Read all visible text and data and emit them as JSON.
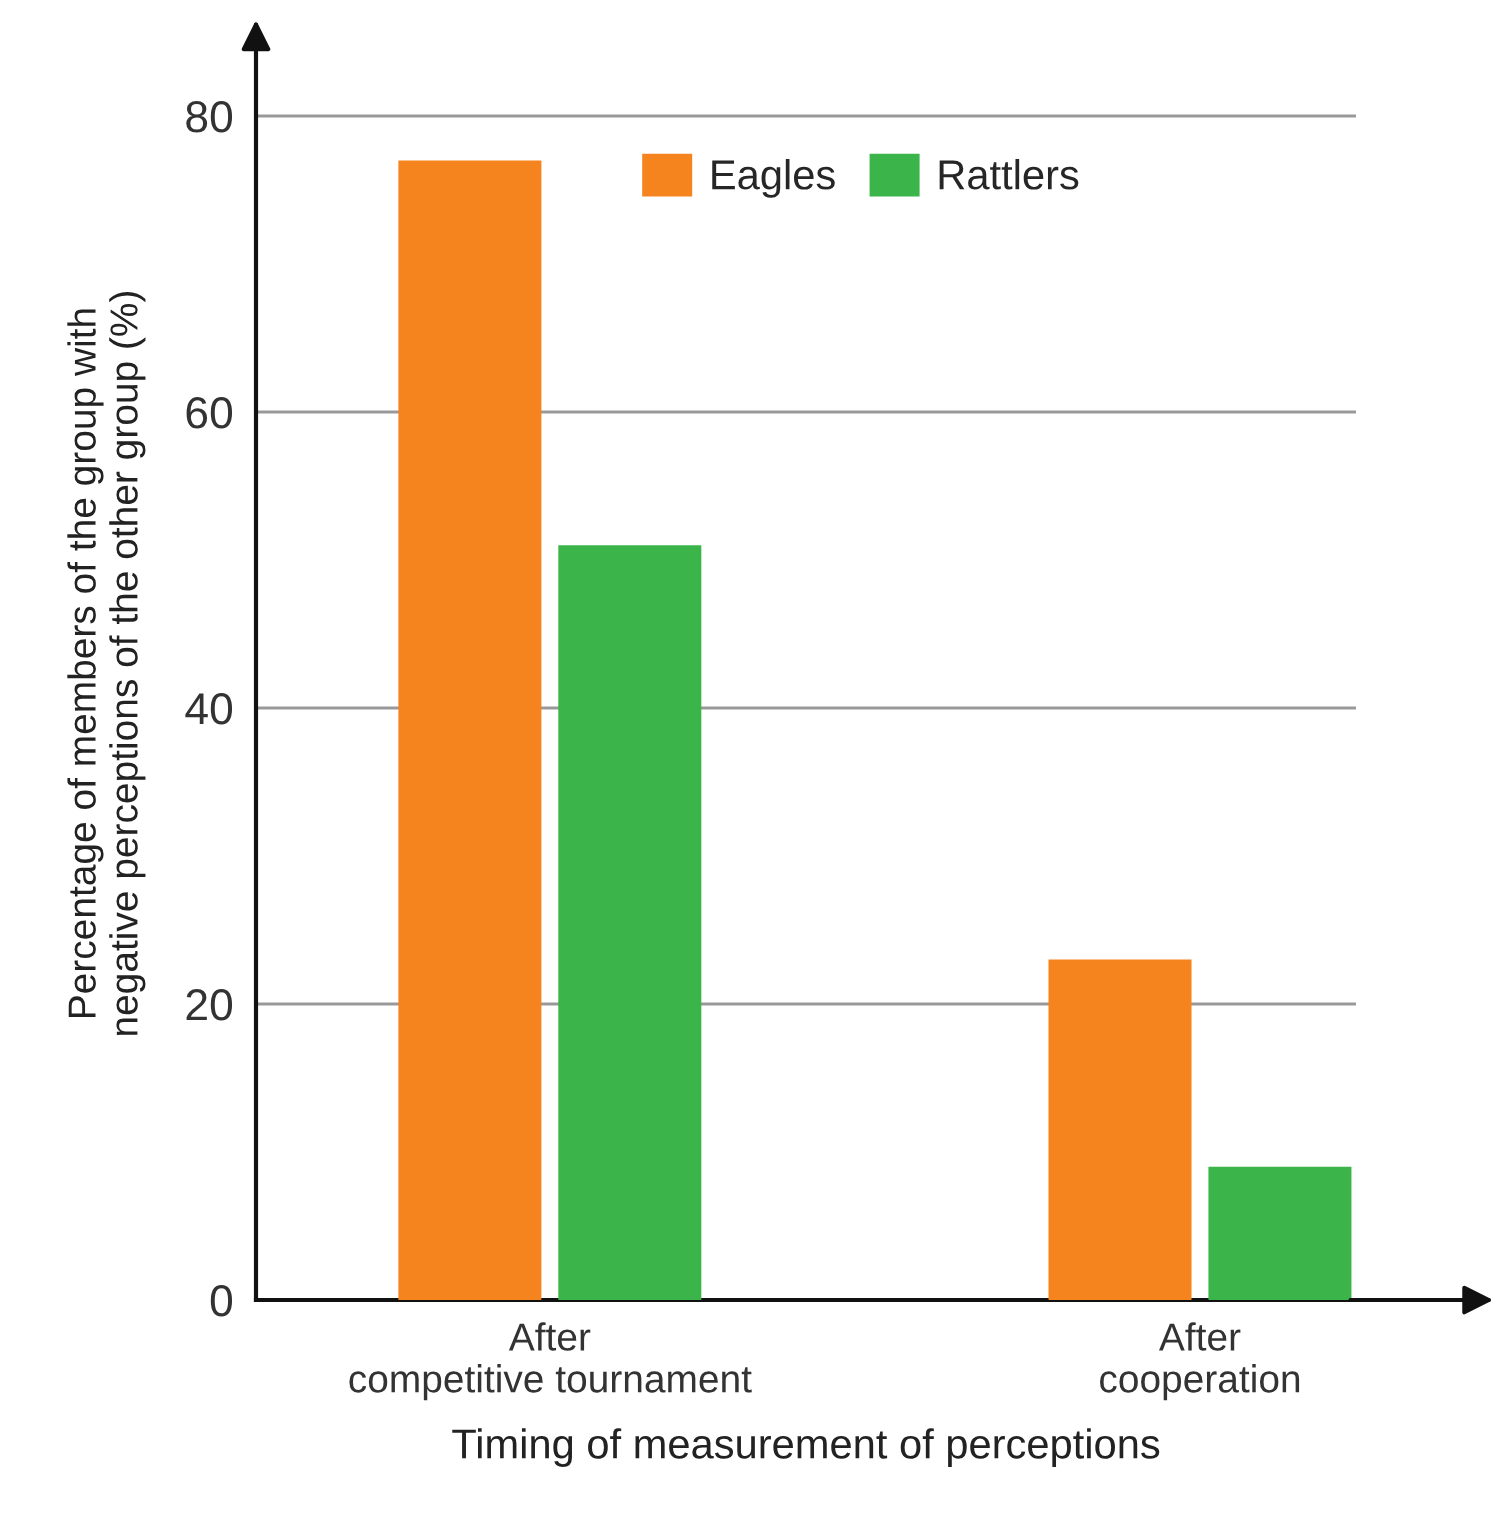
{
  "chart_data": {
    "type": "bar",
    "xlabel": "Timing of measurement of perceptions",
    "ylabel": "Percentage of members of the group with\nnegative perceptions of the other group (%)",
    "categories": [
      "After\ncompetitive tournament",
      "After\ncooperation"
    ],
    "series": [
      {
        "name": "Eagles",
        "color": "#f5841f",
        "values": [
          77,
          23
        ]
      },
      {
        "name": "Rattlers",
        "color": "#3bb54a",
        "values": [
          51,
          9
        ]
      }
    ],
    "ylim": [
      0,
      86
    ],
    "yticks": [
      0,
      20,
      40,
      60,
      80
    ],
    "grid": "y",
    "legend": "top"
  }
}
